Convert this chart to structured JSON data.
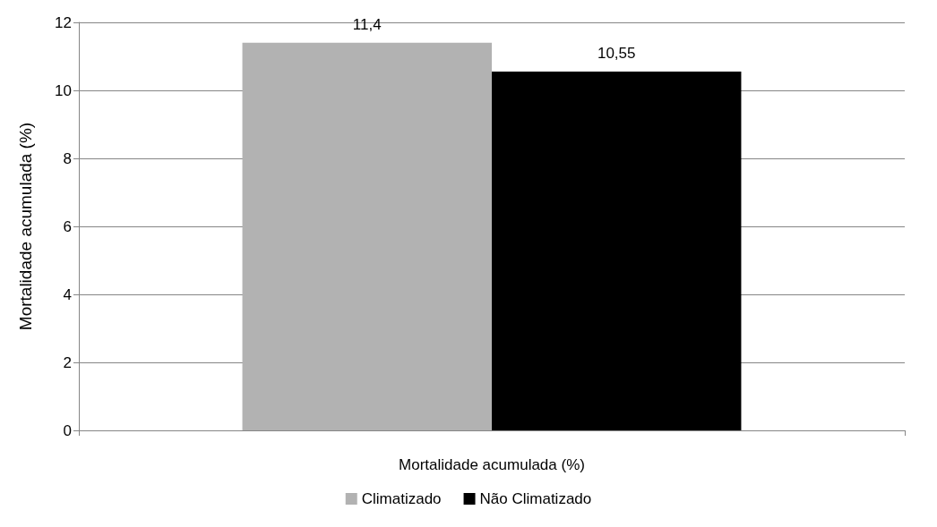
{
  "chart_data": {
    "type": "bar",
    "ylabel": "Mortalidade acumulada (%)",
    "xlabel": "Mortalidade acumulada (%)",
    "categories": [
      null
    ],
    "series": [
      {
        "name": "Climatizado",
        "color": "#b2b2b2",
        "values": [
          11.4
        ],
        "value_labels": [
          "11,4"
        ]
      },
      {
        "name": "Não Climatizado",
        "color": "#000000",
        "values": [
          10.55
        ],
        "value_labels": [
          "10,55"
        ]
      }
    ],
    "ylim": [
      0,
      12
    ],
    "yticks": [
      0,
      2,
      4,
      6,
      8,
      10,
      12
    ],
    "grid": "y",
    "legend": "bottom"
  }
}
